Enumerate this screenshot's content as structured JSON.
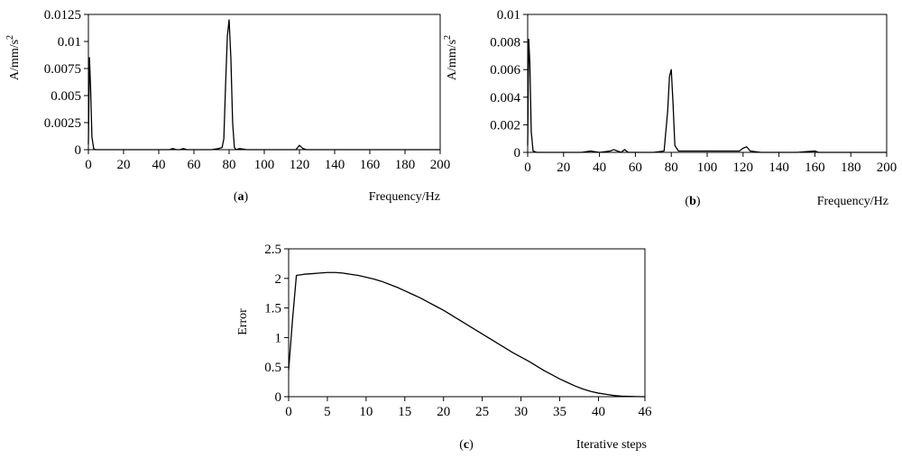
{
  "chart_data": [
    {
      "type": "line",
      "caption": "(a)",
      "xlabel": "Frequency/Hz",
      "ylabel_base": "A/mm/s",
      "ylabel_sup": "2",
      "xlim": [
        0,
        200
      ],
      "ylim": [
        0,
        0.0125
      ],
      "xticks": [
        0,
        20,
        40,
        60,
        80,
        100,
        120,
        140,
        160,
        180,
        200
      ],
      "xtick_labels": [
        "0",
        "20",
        "40",
        "60",
        "80",
        "100",
        "120",
        "140",
        "160",
        "180",
        "200"
      ],
      "yticks": [
        0,
        0.0025,
        0.005,
        0.0075,
        0.01,
        0.0125
      ],
      "ytick_labels": [
        "0",
        "0.0025",
        "0.005",
        "0.0075",
        "0.01",
        "0.0125"
      ],
      "series": [
        {
          "x": [
            0,
            0.6,
            1.2,
            2,
            3,
            4,
            10,
            20,
            30,
            40,
            46,
            48,
            50,
            52,
            54,
            56,
            60,
            70,
            74,
            76,
            77,
            78,
            79,
            80,
            81,
            82,
            83,
            84,
            86,
            90,
            100,
            110,
            118,
            120,
            122,
            124,
            130,
            140,
            160,
            180,
            200
          ],
          "y": [
            0.0005,
            0.0085,
            0.006,
            0.0012,
            0.0001,
            0.0,
            0.0,
            0.0,
            0.0,
            0.0,
            0.0,
            0.0001,
            0.0,
            0.0,
            0.0001,
            0.0,
            0.0,
            0.0,
            0.0001,
            0.0002,
            0.001,
            0.006,
            0.0105,
            0.012,
            0.0085,
            0.0025,
            0.0002,
            0.0,
            0.0001,
            0.0,
            0.0,
            0.0,
            0.0,
            0.0004,
            0.0001,
            0.0,
            0.0,
            0.0,
            0.0,
            0.0,
            0.0
          ]
        }
      ]
    },
    {
      "type": "line",
      "caption": "(b)",
      "xlabel": "Frequency/Hz",
      "ylabel_base": "A/mm/s",
      "ylabel_sup": "2",
      "xlim": [
        0,
        200
      ],
      "ylim": [
        0,
        0.01
      ],
      "xticks": [
        0,
        20,
        40,
        60,
        80,
        100,
        120,
        140,
        160,
        180,
        200
      ],
      "xtick_labels": [
        "0",
        "20",
        "40",
        "60",
        "80",
        "100",
        "120",
        "140",
        "160",
        "180",
        "200"
      ],
      "yticks": [
        0,
        0.002,
        0.004,
        0.006,
        0.008,
        0.01
      ],
      "ytick_labels": [
        "0",
        "0.002",
        "0.004",
        "0.006",
        "0.008",
        "0.01"
      ],
      "series": [
        {
          "x": [
            0,
            0.6,
            1.2,
            2,
            3,
            5,
            10,
            20,
            30,
            35,
            40,
            46,
            48,
            50,
            52,
            54,
            56,
            60,
            70,
            76,
            78,
            79,
            80,
            81,
            82,
            84,
            90,
            100,
            110,
            118,
            120,
            122,
            124,
            130,
            140,
            150,
            160,
            162,
            170,
            180,
            200
          ],
          "y": [
            0.0005,
            0.0082,
            0.0065,
            0.0015,
            0.0001,
            0.0,
            0.0,
            0.0,
            0.0,
            0.0001,
            0.0,
            0.0001,
            0.0002,
            0.0001,
            0.0,
            0.0002,
            0.0,
            0.0,
            0.0,
            0.0001,
            0.003,
            0.0055,
            0.006,
            0.0035,
            0.0005,
            0.0001,
            0.0001,
            0.0001,
            0.0001,
            0.0001,
            0.0003,
            0.0004,
            0.0001,
            0.0,
            0.0,
            0.0,
            0.0001,
            0.0,
            0.0,
            0.0,
            0.0
          ]
        }
      ]
    },
    {
      "type": "line",
      "caption": "(c)",
      "xlabel": "Iterative steps",
      "ylabel": "Error",
      "xlim": [
        0,
        46
      ],
      "ylim": [
        0,
        2.5
      ],
      "xticks": [
        0,
        5,
        10,
        15,
        20,
        25,
        30,
        35,
        40,
        46
      ],
      "xtick_labels": [
        "0",
        "5",
        "10",
        "15",
        "20",
        "25",
        "30",
        "35",
        "40",
        "46"
      ],
      "yticks": [
        0,
        0.5,
        1,
        1.5,
        2,
        2.5
      ],
      "ytick_labels": [
        "0",
        "0.5",
        "1",
        "1.5",
        "2",
        "2.5"
      ],
      "series": [
        {
          "x": [
            0,
            0.5,
            1,
            1.5,
            2,
            3,
            4,
            5,
            6,
            7,
            8,
            9,
            10,
            11,
            12,
            13,
            14,
            15,
            16,
            17,
            18,
            19,
            20,
            21,
            22,
            23,
            24,
            25,
            26,
            27,
            28,
            29,
            30,
            31,
            32,
            33,
            34,
            35,
            36,
            37,
            38,
            39,
            40,
            41,
            42,
            43,
            44,
            45,
            46
          ],
          "y": [
            0.45,
            1.3,
            2.05,
            2.06,
            2.07,
            2.08,
            2.09,
            2.1,
            2.1,
            2.09,
            2.07,
            2.05,
            2.02,
            1.99,
            1.95,
            1.9,
            1.85,
            1.79,
            1.73,
            1.67,
            1.6,
            1.53,
            1.46,
            1.38,
            1.3,
            1.22,
            1.14,
            1.06,
            0.98,
            0.9,
            0.82,
            0.74,
            0.67,
            0.6,
            0.52,
            0.44,
            0.37,
            0.3,
            0.24,
            0.18,
            0.13,
            0.09,
            0.06,
            0.04,
            0.02,
            0.01,
            0.005,
            0.002,
            0.0
          ]
        }
      ]
    }
  ]
}
